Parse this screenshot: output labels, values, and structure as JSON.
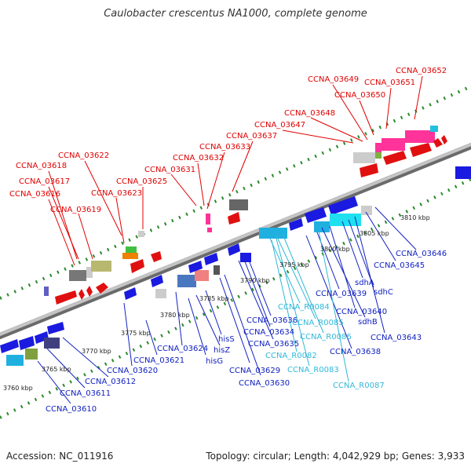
{
  "title": "Caulobacter crescentus NA1000, complete genome",
  "footer": {
    "accession": "Accession: NC_011916",
    "topology": "Topology: circular; Length: 4,042,929 bp; Genes: 3,933"
  },
  "colors": {
    "top_label": "#e00000",
    "bottom_label": "#1020c0",
    "rna_label": "#30b8d8",
    "backbone": "#999999",
    "tick": "#2a8a2a"
  },
  "kbp_ticks": [
    "3760 kbp",
    "3765 kbp",
    "3770 kbp",
    "3775 kbp",
    "3780 kbp",
    "3785 kbp",
    "3790 kbp",
    "3795 kbp",
    "3800 kbp",
    "3805 kbp",
    "3810 kbp"
  ],
  "top_labels": [
    "CCNA_03618",
    "CCNA_03617",
    "CCNA_03616",
    "CCNA_03619",
    "CCNA_03622",
    "CCNA_03623",
    "CCNA_03625",
    "CCNA_03631",
    "CCNA_03632",
    "CCNA_03633",
    "CCNA_03637",
    "CCNA_03647",
    "CCNA_03648",
    "CCNA_03649",
    "CCNA_03650",
    "CCNA_03651",
    "CCNA_03652"
  ],
  "bottom_labels": [
    "CCNA_03610",
    "CCNA_03611",
    "CCNA_03612",
    "CCNA_03620",
    "CCNA_03621",
    "CCNA_03624",
    "hisG",
    "hisZ",
    "hisS",
    "CCNA_03629",
    "CCNA_03630",
    "CCNA_03635",
    "CCNA_03634",
    "CCNA_03636",
    "CCNA_03638",
    "sdhB",
    "CCNA_03639",
    "CCNA_03640",
    "sdhA",
    "sdhC",
    "CCNA_03643",
    "CCNA_03645",
    "CCNA_03646"
  ],
  "rna_labels": [
    "CCNA_R0084",
    "CCNA_R0085",
    "CCNA_R0086",
    "CCNA_R0082",
    "CCNA_R0083",
    "CCNA_R0087"
  ]
}
